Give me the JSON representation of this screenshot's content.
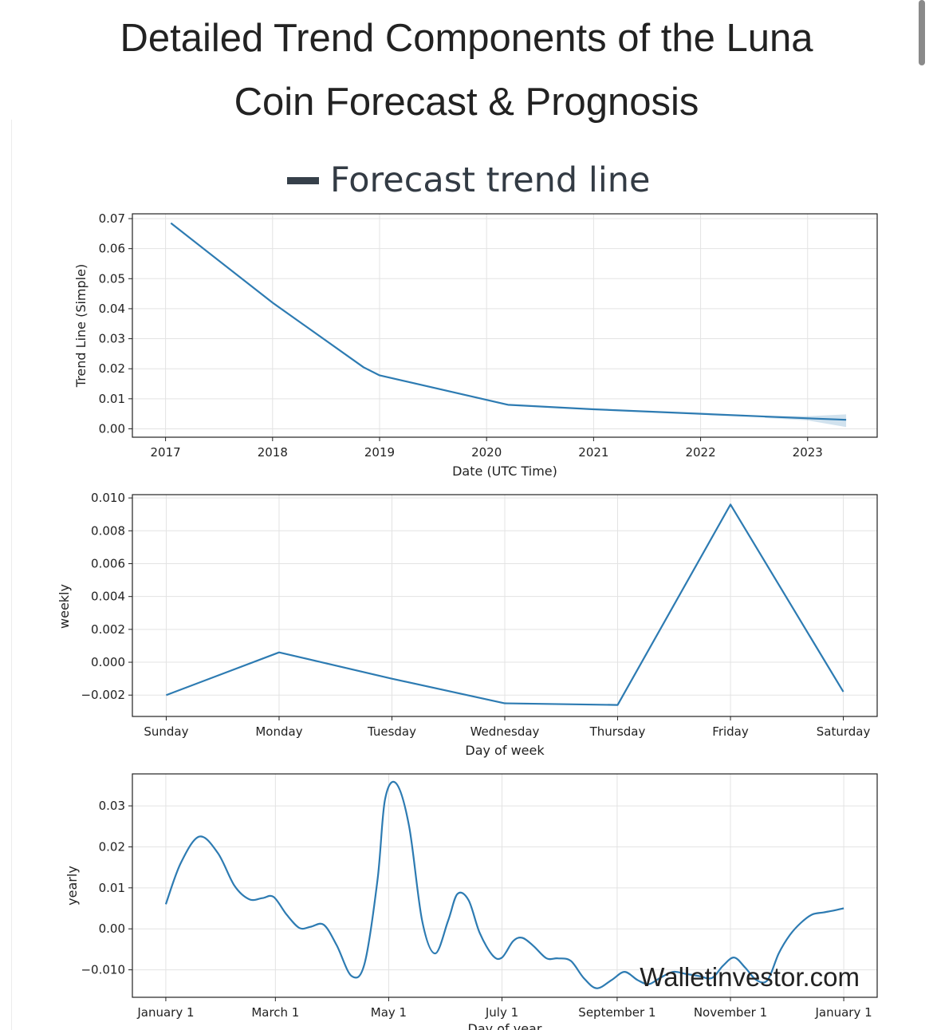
{
  "page": {
    "title_line1": "Detailed Trend Components of the Luna",
    "title_line2": "Coin Forecast & Prognosis",
    "legend_label": "Forecast trend line",
    "watermark": "Walletinvestor.com"
  },
  "colors": {
    "series": "#2d7bb2",
    "legend": "#36404a"
  },
  "chart_data": [
    {
      "type": "line",
      "name": "trend",
      "xlabel": "Date (UTC Time)",
      "ylabel": "Trend Line (Simple)",
      "x_ticks": [
        2017,
        2018,
        2019,
        2020,
        2021,
        2022,
        2023
      ],
      "x_tick_labels": [
        "2017",
        "2018",
        "2019",
        "2020",
        "2021",
        "2022",
        "2023"
      ],
      "xlim": [
        2016.69,
        2023.65
      ],
      "y_ticks": [
        0.0,
        0.01,
        0.02,
        0.03,
        0.04,
        0.05,
        0.06,
        0.07
      ],
      "y_tick_labels": [
        "0.00",
        "0.01",
        "0.02",
        "0.03",
        "0.04",
        "0.05",
        "0.06",
        "0.07"
      ],
      "ylim": [
        -0.0028,
        0.0716
      ],
      "x": [
        2017.05,
        2018.0,
        2018.85,
        2019.0,
        2020.2,
        2021.0,
        2022.0,
        2023.0,
        2023.36
      ],
      "values": [
        0.0685,
        0.042,
        0.0205,
        0.0178,
        0.008,
        0.0065,
        0.005,
        0.0035,
        0.003
      ],
      "band_x": [
        2022.6,
        2023.0,
        2023.36
      ],
      "band_upper": [
        0.0043,
        0.0042,
        0.0048
      ],
      "band_lower": [
        0.0036,
        0.0028,
        0.0006
      ]
    },
    {
      "type": "line",
      "name": "weekly",
      "xlabel": "Day of week",
      "ylabel": "weekly",
      "categories": [
        "Sunday",
        "Monday",
        "Tuesday",
        "Wednesday",
        "Thursday",
        "Friday",
        "Saturday"
      ],
      "xlim": [
        -0.3,
        6.3
      ],
      "y_ticks": [
        -0.002,
        0.0,
        0.002,
        0.004,
        0.006,
        0.008,
        0.01
      ],
      "y_tick_labels": [
        "−0.002",
        "0.000",
        "0.002",
        "0.004",
        "0.006",
        "0.008",
        "0.010"
      ],
      "ylim": [
        -0.0033,
        0.0102
      ],
      "values": [
        -0.002,
        0.0006,
        -0.001,
        -0.0025,
        -0.0026,
        0.0096,
        -0.0018
      ]
    },
    {
      "type": "line",
      "name": "yearly",
      "xlabel": "Day of year",
      "ylabel": "yearly",
      "x_ticks": [
        0,
        59,
        120,
        181,
        243,
        304,
        365
      ],
      "x_tick_labels": [
        "January 1",
        "March 1",
        "May 1",
        "July 1",
        "September 1",
        "November 1",
        "January 1"
      ],
      "xlim": [
        -18,
        383
      ],
      "y_ticks": [
        -0.01,
        0.0,
        0.01,
        0.02,
        0.03
      ],
      "y_tick_labels": [
        "−0.010",
        "0.00",
        "0.01",
        "0.02",
        "0.03"
      ],
      "ylim": [
        -0.0167,
        0.0378
      ],
      "x": [
        0,
        8,
        18,
        28,
        37,
        45,
        52,
        58,
        65,
        72,
        78,
        85,
        92,
        100,
        107,
        114,
        118,
        124,
        131,
        138,
        145,
        152,
        157,
        163,
        169,
        176,
        181,
        187,
        192,
        198,
        205,
        211,
        218,
        225,
        232,
        240,
        247,
        254,
        260,
        266,
        273,
        280,
        287,
        294,
        300,
        306,
        312,
        318,
        324,
        330,
        336,
        342,
        348,
        354,
        360,
        365
      ],
      "values": [
        0.006,
        0.016,
        0.0225,
        0.0185,
        0.0105,
        0.0072,
        0.0075,
        0.0078,
        0.0035,
        0.0002,
        0.0005,
        0.001,
        -0.004,
        -0.0115,
        -0.0085,
        0.012,
        0.0315,
        0.0355,
        0.025,
        0.002,
        -0.006,
        0.002,
        0.0085,
        0.007,
        -0.001,
        -0.0065,
        -0.007,
        -0.003,
        -0.0022,
        -0.0042,
        -0.0072,
        -0.0072,
        -0.0078,
        -0.012,
        -0.0145,
        -0.0125,
        -0.0105,
        -0.0125,
        -0.0135,
        -0.012,
        -0.0105,
        -0.011,
        -0.0115,
        -0.012,
        -0.009,
        -0.007,
        -0.0095,
        -0.0125,
        -0.0125,
        -0.006,
        -0.0015,
        0.0015,
        0.0035,
        0.004,
        0.0045,
        0.005
      ]
    }
  ]
}
